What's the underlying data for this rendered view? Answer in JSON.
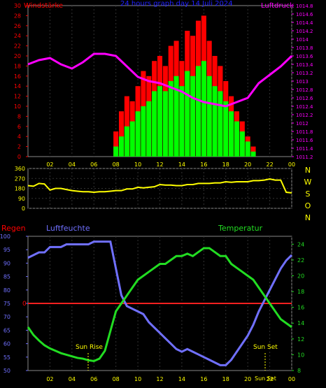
{
  "chart_data": [
    {
      "type": "bar",
      "title": "24 hours graph day  14 Juli 2024",
      "left_label": "Windstärke",
      "right_label": "Luftdruck",
      "x_ticks": [
        "02",
        "04",
        "06",
        "08",
        "10",
        "12",
        "14",
        "16",
        "18",
        "20",
        "22",
        "00"
      ],
      "left_ticks": [
        "0",
        "2",
        "4",
        "6",
        "8",
        "10",
        "12",
        "14",
        "16",
        "18",
        "20",
        "22",
        "24",
        "26",
        "28",
        "30"
      ],
      "right_ticks": [
        "1011.2",
        "1011.4",
        "1011.6",
        "1011.8",
        "1012",
        "1012.2",
        "1012.4",
        "1012.6",
        "1012.8",
        "1013",
        "1013.2",
        "1013.4",
        "1013.6",
        "1013.8",
        "1014",
        "1014.2",
        "1014.4",
        "1014.6",
        "1014.8"
      ],
      "ylim": [
        0,
        30
      ],
      "ylim_right": [
        1011.2,
        1014.8
      ],
      "series": [
        {
          "name": "Windstärke",
          "color": "#ff0000",
          "x": [
            8,
            8.5,
            9,
            9.5,
            10,
            10.5,
            11,
            11.5,
            12,
            12.5,
            13,
            13.5,
            14,
            14.5,
            15,
            15.5,
            16,
            16.5,
            17,
            17.5,
            18,
            18.5,
            19,
            19.5,
            20,
            20.5
          ],
          "values": [
            5,
            9,
            12,
            11,
            14,
            17,
            16,
            19,
            20,
            18,
            22,
            23,
            19,
            25,
            24,
            27,
            28,
            23,
            20,
            18,
            15,
            12,
            9,
            7,
            4,
            2
          ]
        },
        {
          "name": "Windstärke",
          "color": "#00ff00",
          "x": [
            8,
            8.5,
            9,
            9.5,
            10,
            10.5,
            11,
            11.5,
            12,
            12.5,
            13,
            13.5,
            14,
            14.5,
            15,
            15.5,
            16,
            16.5,
            17,
            17.5,
            18,
            18.5,
            19,
            19.5,
            20,
            20.5
          ],
          "values": [
            2,
            4,
            6,
            7,
            9,
            10,
            11,
            13,
            14,
            13,
            15,
            16,
            14,
            17,
            16,
            18,
            19,
            16,
            14,
            13,
            11,
            9,
            7,
            5,
            3,
            1
          ]
        },
        {
          "name": "Luftdruck",
          "color": "#ff00ff",
          "x": [
            0,
            1,
            2,
            3,
            4,
            5,
            6,
            7,
            8,
            9,
            10,
            11,
            12,
            13,
            14,
            15,
            16,
            17,
            18,
            19,
            20,
            21,
            22,
            23,
            24
          ],
          "values": [
            1013.4,
            1013.5,
            1013.55,
            1013.4,
            1013.3,
            1013.45,
            1013.65,
            1013.65,
            1013.6,
            1013.35,
            1013.1,
            1013.0,
            1012.95,
            1012.85,
            1012.75,
            1012.6,
            1012.5,
            1012.45,
            1012.4,
            1012.5,
            1012.6,
            1012.95,
            1013.15,
            1013.35,
            1013.6
          ]
        }
      ]
    },
    {
      "type": "line",
      "right_labels": [
        "N",
        "W",
        "S",
        "O",
        "N"
      ],
      "x_ticks": [
        "02",
        "04",
        "06",
        "08",
        "10",
        "12",
        "14",
        "16",
        "18",
        "20",
        "22",
        "00"
      ],
      "left_ticks": [
        "0",
        "90",
        "180",
        "270",
        "360"
      ],
      "ylim": [
        0,
        360
      ],
      "series": [
        {
          "name": "Windrichtung",
          "color": "#ffff00",
          "x": [
            0,
            0.5,
            1,
            1.5,
            2,
            2.5,
            3,
            3.5,
            4,
            4.5,
            5,
            5.5,
            6,
            6.5,
            7,
            7.5,
            8,
            8.5,
            9,
            9.5,
            10,
            10.5,
            11,
            11.5,
            12,
            12.5,
            13,
            13.5,
            14,
            14.5,
            15,
            15.5,
            16,
            16.5,
            17,
            17.5,
            18,
            18.5,
            19,
            19.5,
            20,
            20.5,
            21,
            21.5,
            22,
            22.5,
            23,
            23.5,
            24
          ],
          "values": [
            205,
            200,
            225,
            220,
            165,
            180,
            180,
            170,
            160,
            155,
            150,
            150,
            145,
            150,
            150,
            155,
            160,
            160,
            175,
            175,
            190,
            185,
            190,
            195,
            215,
            210,
            210,
            205,
            205,
            215,
            215,
            225,
            225,
            225,
            230,
            230,
            240,
            235,
            240,
            240,
            240,
            250,
            250,
            255,
            265,
            255,
            255,
            145,
            140
          ]
        }
      ]
    },
    {
      "type": "line",
      "title_left": "Regen",
      "title_humidity": "Luftfeuchte",
      "title_temp": "Temperatur",
      "x_ticks": [
        "02",
        "04",
        "06",
        "08",
        "10",
        "12",
        "14",
        "16",
        "18",
        "20",
        "22",
        "00"
      ],
      "humidity_ticks": [
        "50",
        "55",
        "60",
        "65",
        "70",
        "75",
        "80",
        "85",
        "90",
        "95",
        "100"
      ],
      "temp_ticks": [
        "8",
        "10",
        "12",
        "14",
        "16",
        "18",
        "20",
        "22",
        "24"
      ],
      "rain_label": "0",
      "rain_value": 0,
      "ylim": [
        50,
        100
      ],
      "ylim_right": [
        8,
        25
      ],
      "annotations": [
        "Sun Rise",
        "Sun Set",
        "Sun Set"
      ],
      "series": [
        {
          "name": "Luftfeuchte",
          "color": "#7070ff",
          "x": [
            0,
            0.5,
            1,
            1.5,
            2,
            2.5,
            3,
            3.5,
            4,
            4.5,
            5,
            5.5,
            6,
            6.5,
            7,
            7.5,
            8,
            8.5,
            9,
            9.5,
            10,
            10.5,
            11,
            11.5,
            12,
            12.5,
            13,
            13.5,
            14,
            14.5,
            15,
            15.5,
            16,
            16.5,
            17,
            17.5,
            18,
            18.5,
            19,
            19.5,
            20,
            20.5,
            21,
            21.5,
            22,
            22.5,
            23,
            23.5,
            24
          ],
          "values": [
            92,
            93,
            94,
            94,
            96,
            96,
            96,
            97,
            97,
            97,
            97,
            97,
            98,
            98,
            98,
            98,
            88,
            78,
            74,
            73,
            72,
            71,
            68,
            66,
            64,
            62,
            60,
            58,
            57,
            58,
            57,
            56,
            55,
            54,
            53,
            52,
            52,
            54,
            57,
            60,
            63,
            67,
            72,
            76,
            80,
            84,
            88,
            91,
            93
          ]
        },
        {
          "name": "Temperatur",
          "color": "#22dd22",
          "x": [
            0,
            0.5,
            1,
            1.5,
            2,
            2.5,
            3,
            3.5,
            4,
            4.5,
            5,
            5.5,
            6,
            6.5,
            7,
            7.5,
            8,
            8.5,
            9,
            9.5,
            10,
            10.5,
            11,
            11.5,
            12,
            12.5,
            13,
            13.5,
            14,
            14.5,
            15,
            15.5,
            16,
            16.5,
            17,
            17.5,
            18,
            18.5,
            19,
            19.5,
            20,
            20.5,
            21,
            21.5,
            22,
            22.5,
            23,
            23.5,
            24
          ],
          "values": [
            13.5,
            12.5,
            11.8,
            11.2,
            10.8,
            10.5,
            10.2,
            10,
            9.8,
            9.6,
            9.5,
            9.3,
            9.2,
            9.5,
            10.5,
            13,
            15.5,
            16.5,
            17.5,
            18.5,
            19.5,
            20,
            20.5,
            21,
            21.5,
            21.5,
            22,
            22.5,
            22.5,
            22.8,
            22.5,
            23,
            23.5,
            23.5,
            23,
            22.5,
            22.5,
            21.5,
            21,
            20.5,
            20,
            19.5,
            18.5,
            17.5,
            16.5,
            15.5,
            14.5,
            14,
            13.5
          ]
        }
      ]
    }
  ]
}
